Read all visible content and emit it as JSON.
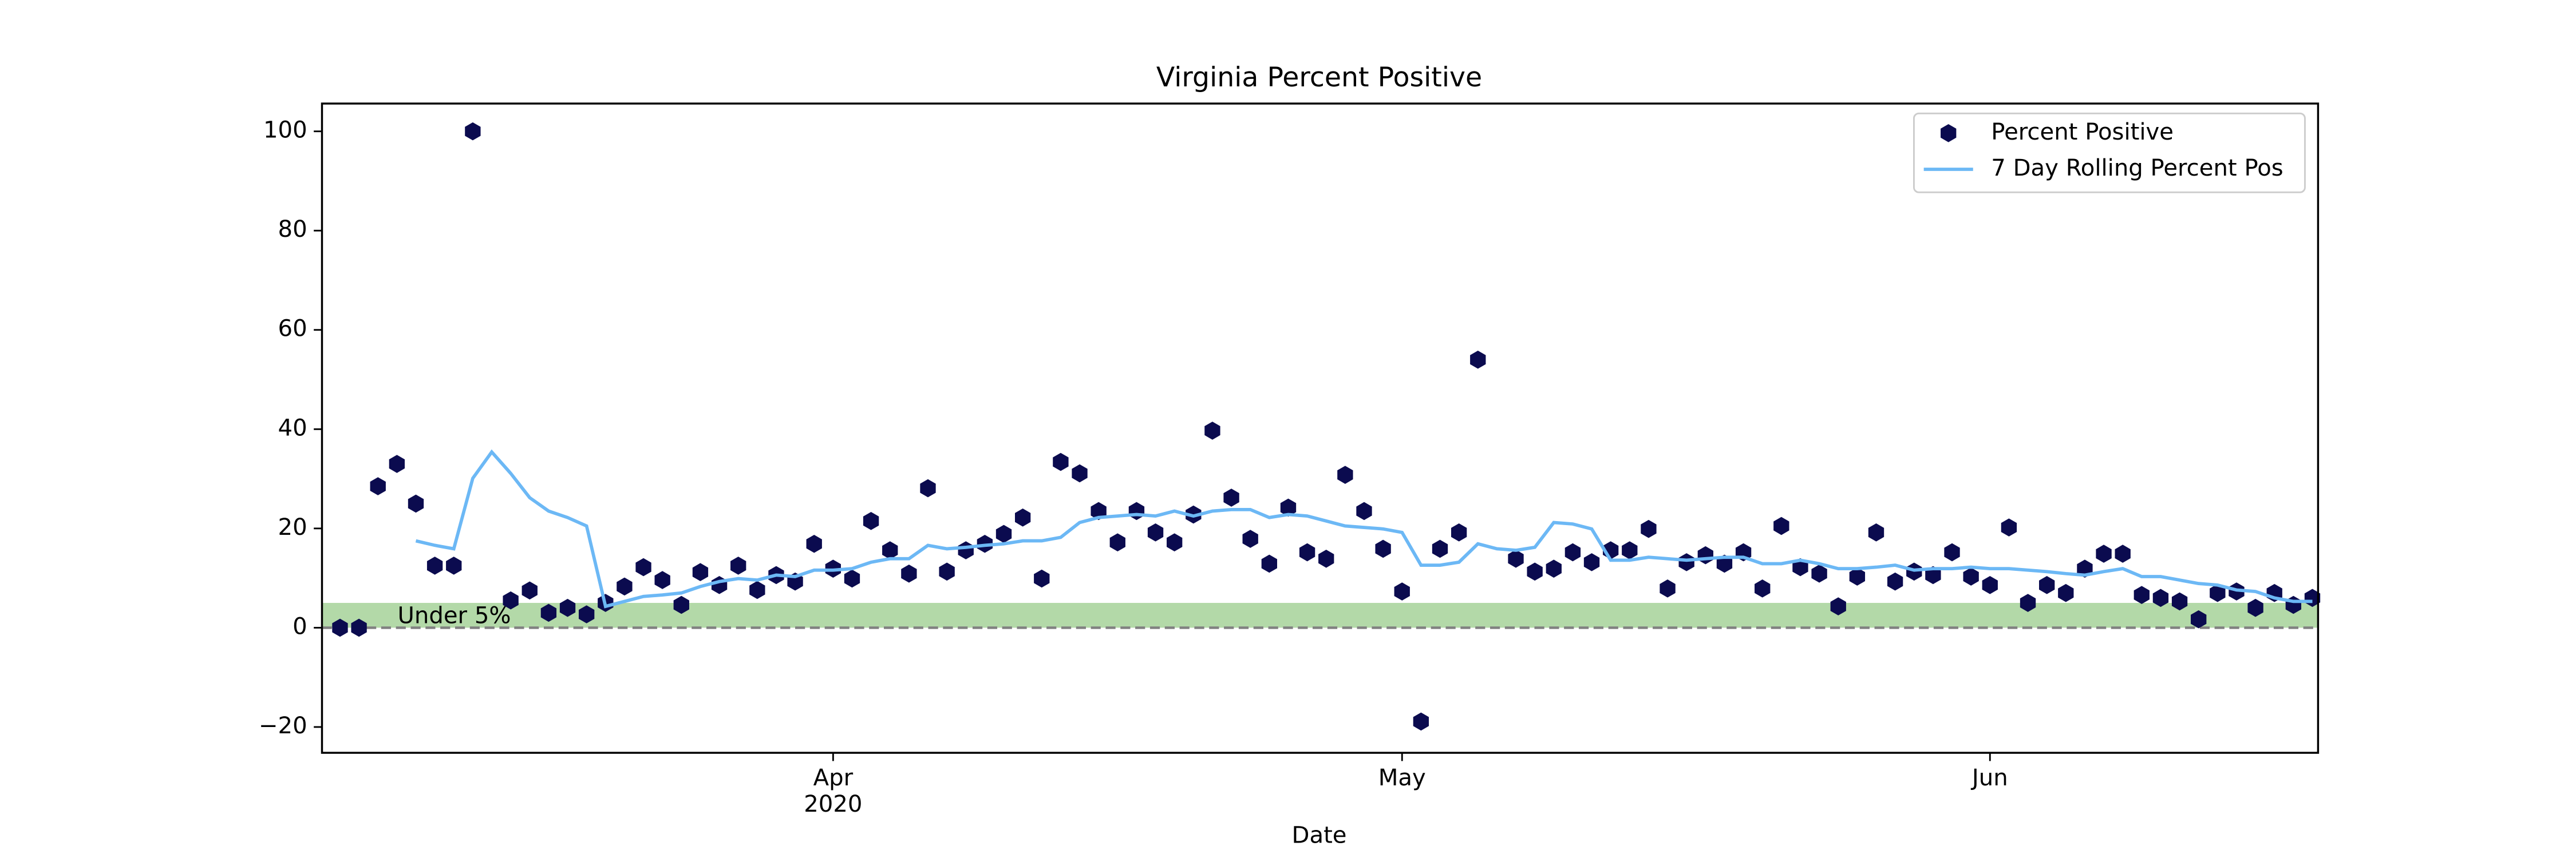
{
  "chart_data": {
    "type": "scatter",
    "title": "Virginia Percent Positive",
    "x_label": "Date",
    "categories": [
      null,
      null,
      null,
      null,
      null,
      null,
      null,
      null,
      null,
      null,
      null,
      null,
      null,
      null,
      null,
      null,
      null,
      null,
      null,
      null,
      null,
      null,
      null,
      null,
      null,
      null,
      null,
      null,
      null,
      null,
      null,
      null,
      null,
      null,
      null,
      null,
      null,
      null,
      null,
      null,
      null,
      null,
      null,
      null,
      null,
      null,
      null,
      null,
      null,
      null,
      null,
      null,
      null,
      null,
      null,
      null,
      null,
      null,
      null,
      null,
      null,
      null,
      null,
      null,
      null,
      null,
      null,
      null,
      null,
      null,
      null,
      null,
      null,
      null,
      null,
      null,
      null,
      null,
      null,
      null,
      null,
      null,
      null,
      null,
      null,
      null,
      null,
      null,
      null,
      null,
      null,
      null,
      null,
      null,
      null,
      null,
      null,
      null,
      null,
      null,
      null,
      null,
      null,
      null,
      null
    ],
    "xlim": [
      -0.95,
      104.3
    ],
    "xticks": [
      {
        "value": 26,
        "label": "Apr\n2020"
      },
      {
        "value": 56,
        "label": "May"
      },
      {
        "value": 87,
        "label": "Jun"
      }
    ],
    "ylim": [
      -25.2,
      105.6
    ],
    "yticks": [
      {
        "value": -20,
        "label": "−20"
      },
      0,
      20,
      40,
      60,
      80,
      100
    ],
    "legend": "upper right",
    "bands": [
      {
        "range": [
          0,
          5
        ],
        "label": "Under 5%",
        "color": "#b3d9a8"
      }
    ],
    "hlines": [
      {
        "value": 0,
        "color": "#808080"
      }
    ],
    "series": [
      {
        "name": "Percent Positive",
        "type": "scatter",
        "color": "#0b0b4f",
        "values": [
          0,
          0,
          28.5,
          33,
          25,
          12.5,
          12.5,
          100,
          null,
          5.5,
          7.5,
          3,
          4,
          2.7,
          5,
          8.3,
          12.2,
          9.6,
          4.6,
          11.2,
          8.6,
          12.5,
          7.6,
          10.6,
          9.3,
          16.9,
          11.9,
          9.9,
          21.5,
          15.6,
          10.9,
          28.1,
          11.3,
          15.6,
          16.9,
          18.9,
          22.2,
          9.9,
          33.4,
          31.1,
          23.5,
          17.2,
          23.5,
          19.2,
          17.2,
          22.8,
          39.7,
          26.2,
          17.9,
          12.9,
          24.2,
          15.2,
          13.9,
          30.8,
          23.5,
          15.9,
          7.3,
          -18.9,
          15.9,
          19.2,
          54,
          null,
          13.9,
          11.3,
          11.9,
          15.2,
          13.2,
          15.6,
          15.6,
          19.9,
          7.9,
          13.2,
          14.6,
          12.9,
          15.2,
          7.9,
          20.5,
          12.2,
          10.9,
          4.3,
          10.3,
          19.2,
          9.3,
          11.3,
          10.6,
          15.2,
          10.3,
          8.6,
          20.2,
          5,
          8.6,
          7,
          11.9,
          14.9,
          14.9,
          6.6,
          6,
          5.3,
          1.7,
          7,
          7.3,
          4,
          7,
          4.6,
          6
        ]
      },
      {
        "name": "7 Day Rolling Percent Pos",
        "type": "line",
        "color": "#6cb8f5",
        "values": [
          null,
          null,
          null,
          null,
          17.5,
          16.6,
          15.9,
          30.1,
          35.4,
          31.1,
          26.2,
          23.5,
          22.2,
          20.5,
          4.3,
          5.3,
          6.3,
          6.6,
          7,
          8.3,
          9.3,
          9.9,
          9.6,
          10.6,
          10.3,
          11.6,
          11.6,
          11.9,
          13.2,
          13.9,
          13.9,
          16.6,
          15.9,
          16.2,
          16.6,
          16.9,
          17.5,
          17.5,
          18.2,
          21.2,
          22.2,
          22.5,
          22.8,
          22.5,
          23.5,
          22.5,
          23.5,
          23.8,
          23.8,
          22.2,
          22.8,
          22.5,
          21.5,
          20.5,
          20.2,
          19.9,
          19.2,
          12.6,
          12.6,
          13.2,
          16.9,
          15.9,
          15.6,
          16.2,
          21.2,
          20.9,
          19.9,
          13.6,
          13.6,
          14.2,
          13.9,
          13.6,
          13.9,
          14.2,
          14.2,
          12.9,
          12.9,
          13.6,
          12.9,
          11.9,
          11.9,
          12.2,
          12.6,
          11.6,
          11.9,
          11.9,
          12.2,
          11.9,
          11.9,
          11.6,
          11.3,
          10.9,
          10.6,
          11.3,
          11.9,
          10.3,
          10.3,
          9.6,
          8.9,
          8.6,
          7.6,
          7.3,
          6,
          5.3,
          5.3
        ]
      }
    ]
  }
}
